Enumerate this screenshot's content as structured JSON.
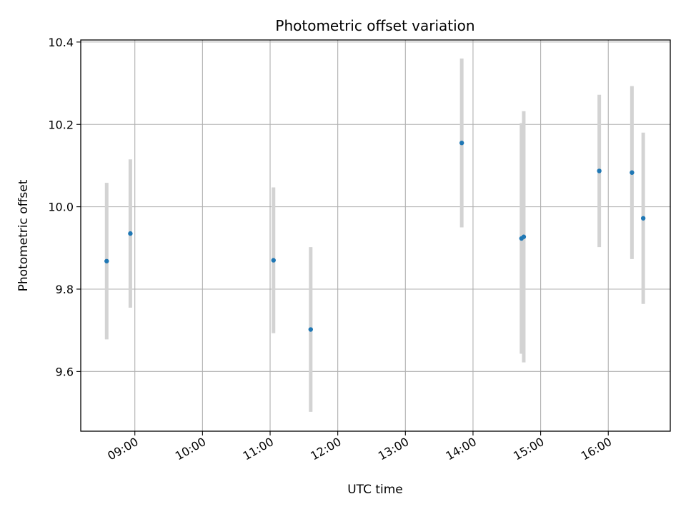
{
  "chart_data": {
    "type": "scatter",
    "title": "Photometric offset variation",
    "xlabel": "UTC time",
    "ylabel": "Photometric offset",
    "grid": true,
    "xlim": [
      "08:12",
      "16:55"
    ],
    "ylim": [
      9.455,
      10.405
    ],
    "x_ticks": [
      "09:00",
      "10:00",
      "11:00",
      "12:00",
      "13:00",
      "14:00",
      "15:00",
      "16:00"
    ],
    "y_ticks": [
      "9.6",
      "9.8",
      "10.0",
      "10.2",
      "10.4"
    ],
    "colors": {
      "point": "#1f77b4",
      "errorbar": "#d3d3d3",
      "grid": "#b0b0b0"
    },
    "points": [
      {
        "x": "08:35",
        "y": 9.868,
        "yerr": 0.19
      },
      {
        "x": "08:56",
        "y": 9.935,
        "yerr": 0.18
      },
      {
        "x": "11:03",
        "y": 9.87,
        "yerr": 0.177
      },
      {
        "x": "11:36",
        "y": 9.702,
        "yerr": 0.2
      },
      {
        "x": "13:50",
        "y": 10.155,
        "yerr": 0.205
      },
      {
        "x": "14:43",
        "y": 9.923,
        "yerr": 0.28
      },
      {
        "x": "14:45",
        "y": 9.927,
        "yerr": 0.305
      },
      {
        "x": "15:52",
        "y": 10.087,
        "yerr": 0.185
      },
      {
        "x": "16:21",
        "y": 10.083,
        "yerr": 0.21
      },
      {
        "x": "16:31",
        "y": 9.972,
        "yerr": 0.208
      }
    ]
  }
}
